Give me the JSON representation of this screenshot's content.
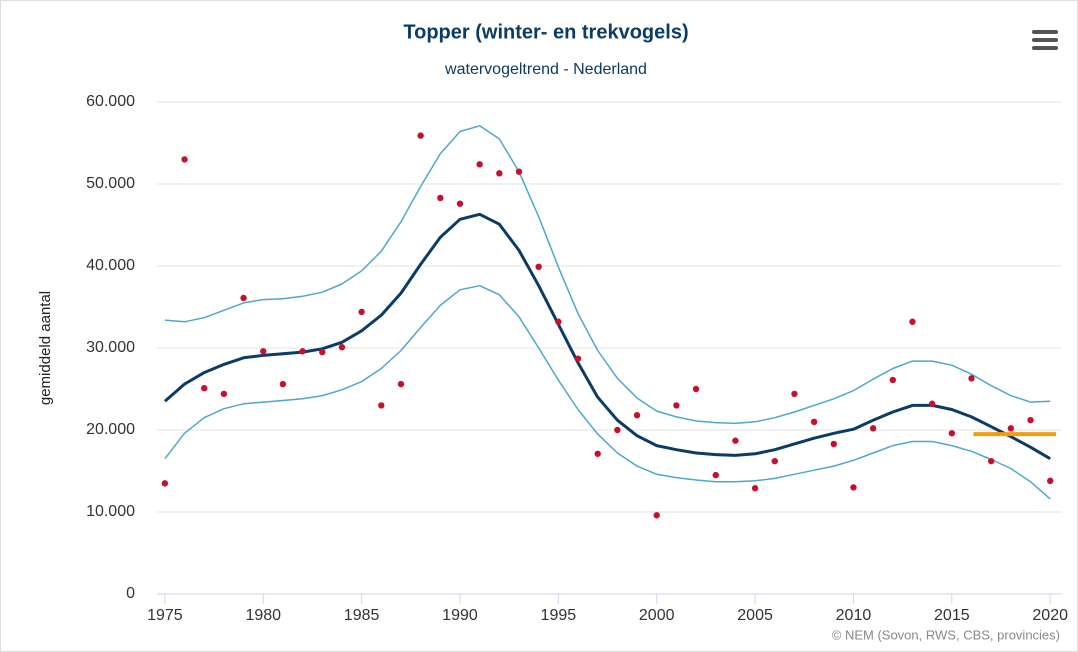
{
  "chart_data": {
    "type": "line",
    "title": "Topper (winter- en trekvogels)",
    "subtitle": "watervogeltrend - Nederland",
    "y_label": "gemiddeld aantal",
    "credits": "© NEM (Sovon, RWS, CBS, provincies)",
    "x": [
      1975,
      1976,
      1977,
      1978,
      1979,
      1980,
      1981,
      1982,
      1983,
      1984,
      1985,
      1986,
      1987,
      1988,
      1989,
      1990,
      1991,
      1992,
      1993,
      1994,
      1995,
      1996,
      1997,
      1998,
      1999,
      2000,
      2001,
      2002,
      2003,
      2004,
      2005,
      2006,
      2007,
      2008,
      2009,
      2010,
      2011,
      2012,
      2013,
      2014,
      2015,
      2016,
      2017,
      2018,
      2019,
      2020
    ],
    "xlim": [
      1974.6,
      2020.6
    ],
    "xticks": [
      1975,
      1980,
      1985,
      1990,
      1995,
      2000,
      2005,
      2010,
      2015,
      2020
    ],
    "ylim": [
      0,
      60000
    ],
    "yticks": [
      0,
      {
        "value": 10000,
        "label": "10.000"
      },
      {
        "value": 20000,
        "label": "20.000"
      },
      {
        "value": 30000,
        "label": "30.000"
      },
      {
        "value": 40000,
        "label": "40.000"
      },
      {
        "value": 50000,
        "label": "50.000"
      },
      {
        "value": 60000,
        "label": "60.000"
      }
    ],
    "grid": true,
    "series": [
      {
        "style": "line",
        "color": "#4fa8c9",
        "width": 1.5,
        "values": [
          33400,
          33200,
          33700,
          34600,
          35500,
          35900,
          36000,
          36300,
          36800,
          37800,
          39400,
          41800,
          45400,
          49700,
          53700,
          56400,
          57100,
          55500,
          51500,
          46000,
          39900,
          34200,
          29700,
          26300,
          23900,
          22300,
          21600,
          21100,
          20900,
          20800,
          21000,
          21500,
          22200,
          23000,
          23800,
          24800,
          26200,
          27500,
          28400,
          28400,
          27900,
          26800,
          25400,
          24200,
          23400,
          23500
        ]
      },
      {
        "style": "line",
        "color": "#4fa8c9",
        "width": 1.5,
        "values": [
          16500,
          19600,
          21500,
          22600,
          23200,
          23400,
          23600,
          23800,
          24200,
          24900,
          25900,
          27500,
          29700,
          32500,
          35200,
          37100,
          37600,
          36500,
          33800,
          30000,
          26100,
          22500,
          19500,
          17200,
          15600,
          14600,
          14200,
          13900,
          13700,
          13700,
          13800,
          14100,
          14600,
          15100,
          15600,
          16300,
          17200,
          18100,
          18600,
          18600,
          18100,
          17400,
          16400,
          15300,
          13700,
          11600
        ]
      },
      {
        "style": "line",
        "color": "#0b3c66",
        "width": 3,
        "values": [
          23500,
          25600,
          27000,
          28000,
          28800,
          29100,
          29300,
          29500,
          29900,
          30700,
          32100,
          34000,
          36700,
          40200,
          43500,
          45700,
          46300,
          45100,
          41900,
          37600,
          32900,
          28200,
          24000,
          21200,
          19300,
          18100,
          17600,
          17200,
          17000,
          16900,
          17100,
          17600,
          18300,
          19000,
          19600,
          20100,
          21200,
          22200,
          23000,
          23000,
          22500,
          21600,
          20400,
          19200,
          17900,
          16500
        ]
      },
      {
        "style": "markers",
        "color": "#c8102e",
        "values": [
          13500,
          53000,
          25100,
          24400,
          36100,
          29600,
          25600,
          29600,
          29500,
          30100,
          34400,
          23000,
          25600,
          55900,
          48300,
          47600,
          52400,
          51300,
          51500,
          39900,
          33200,
          28700,
          17100,
          20000,
          21800,
          9600,
          23000,
          25000,
          14500,
          18700,
          12900,
          16200,
          24400,
          21000,
          18300,
          13000,
          20200,
          26100,
          33200,
          23200,
          19600,
          26300,
          16200,
          20200,
          21200,
          13800
        ]
      }
    ],
    "reference_line": {
      "color": "#f39c12",
      "x": [
        2016.1,
        2020.3
      ],
      "values": [
        19500,
        19500
      ]
    }
  }
}
